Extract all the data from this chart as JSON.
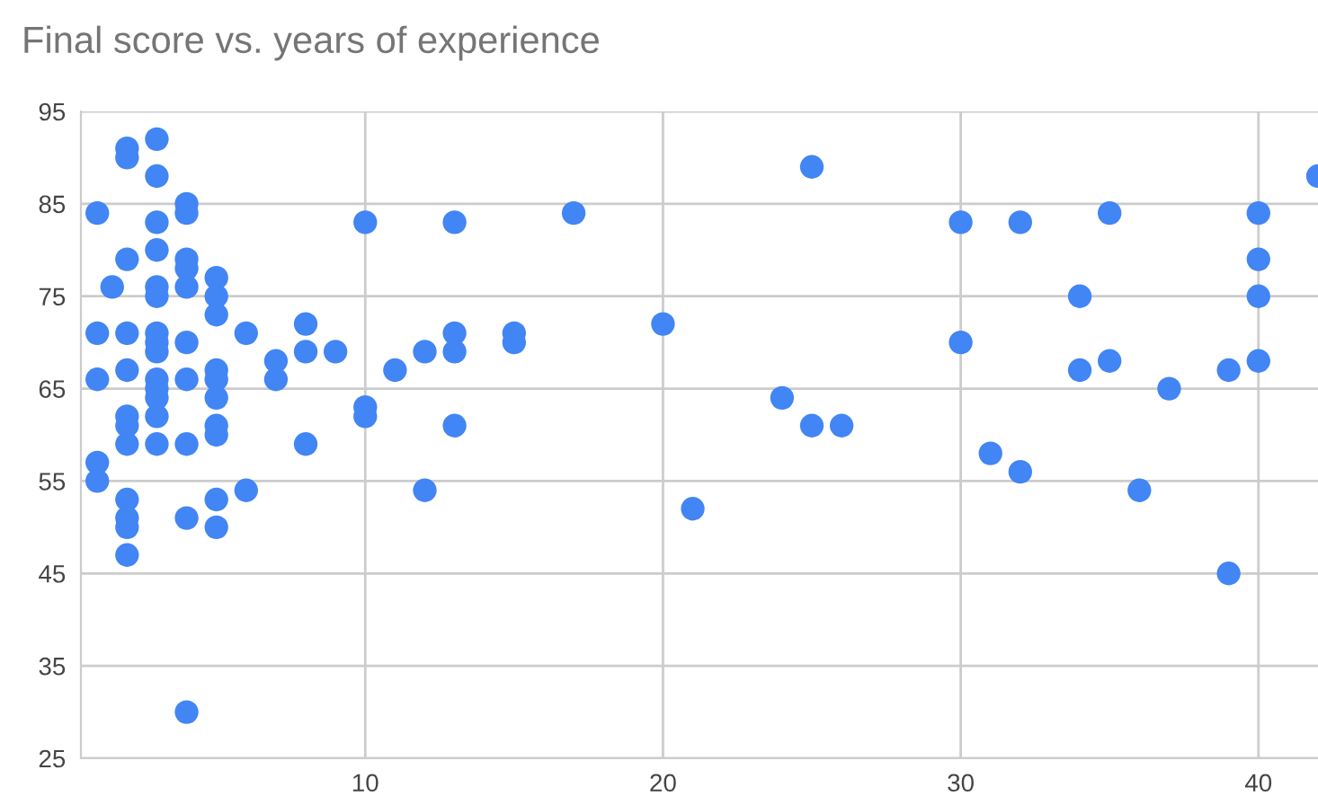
{
  "chart_data": {
    "type": "scatter",
    "title": "Final score vs. years of experience",
    "x": [
      1,
      1,
      1,
      1,
      1,
      1.5,
      2,
      2,
      2,
      2,
      2,
      2,
      2,
      2,
      2,
      2,
      2,
      2,
      3,
      3,
      3,
      3,
      3,
      3,
      3,
      3,
      3,
      3,
      3,
      3,
      3,
      3,
      4,
      4,
      4,
      4,
      4,
      4,
      4,
      4,
      4,
      4,
      5,
      5,
      5,
      5,
      5,
      5,
      5,
      5,
      5,
      5,
      6,
      6,
      7,
      7,
      8,
      8,
      8,
      9,
      10,
      10,
      10,
      11,
      12,
      12,
      13,
      13,
      13,
      13,
      15,
      15,
      17,
      20,
      21,
      24,
      25,
      25,
      26,
      30,
      30,
      31,
      32,
      32,
      34,
      34,
      35,
      35,
      36,
      37,
      39,
      39,
      40,
      40,
      40,
      40,
      42
    ],
    "series": [
      {
        "color": "#4285f4",
        "values": [
          84,
          71,
          66,
          57,
          55,
          76,
          91,
          90,
          79,
          71,
          67,
          62,
          61,
          59,
          53,
          51,
          50,
          47,
          92,
          88,
          83,
          80,
          76,
          75,
          71,
          70,
          69,
          66,
          65,
          64,
          62,
          59,
          85,
          84,
          79,
          78,
          76,
          70,
          66,
          59,
          51,
          30,
          77,
          75,
          73,
          67,
          66,
          64,
          61,
          60,
          53,
          50,
          71,
          54,
          68,
          66,
          72,
          69,
          59,
          69,
          83,
          63,
          62,
          67,
          69,
          54,
          83,
          71,
          69,
          61,
          71,
          70,
          84,
          72,
          52,
          64,
          89,
          61,
          61,
          83,
          70,
          58,
          83,
          56,
          75,
          67,
          84,
          68,
          54,
          65,
          67,
          45,
          84,
          79,
          75,
          68,
          88
        ]
      }
    ],
    "xlim": [
      0.45,
      42
    ],
    "xticks": [
      10,
      20,
      30,
      40
    ],
    "ylim": [
      25,
      95
    ],
    "yticks": [
      25,
      35,
      45,
      55,
      65,
      75,
      85,
      95
    ],
    "grid": true,
    "marker": "circle"
  }
}
